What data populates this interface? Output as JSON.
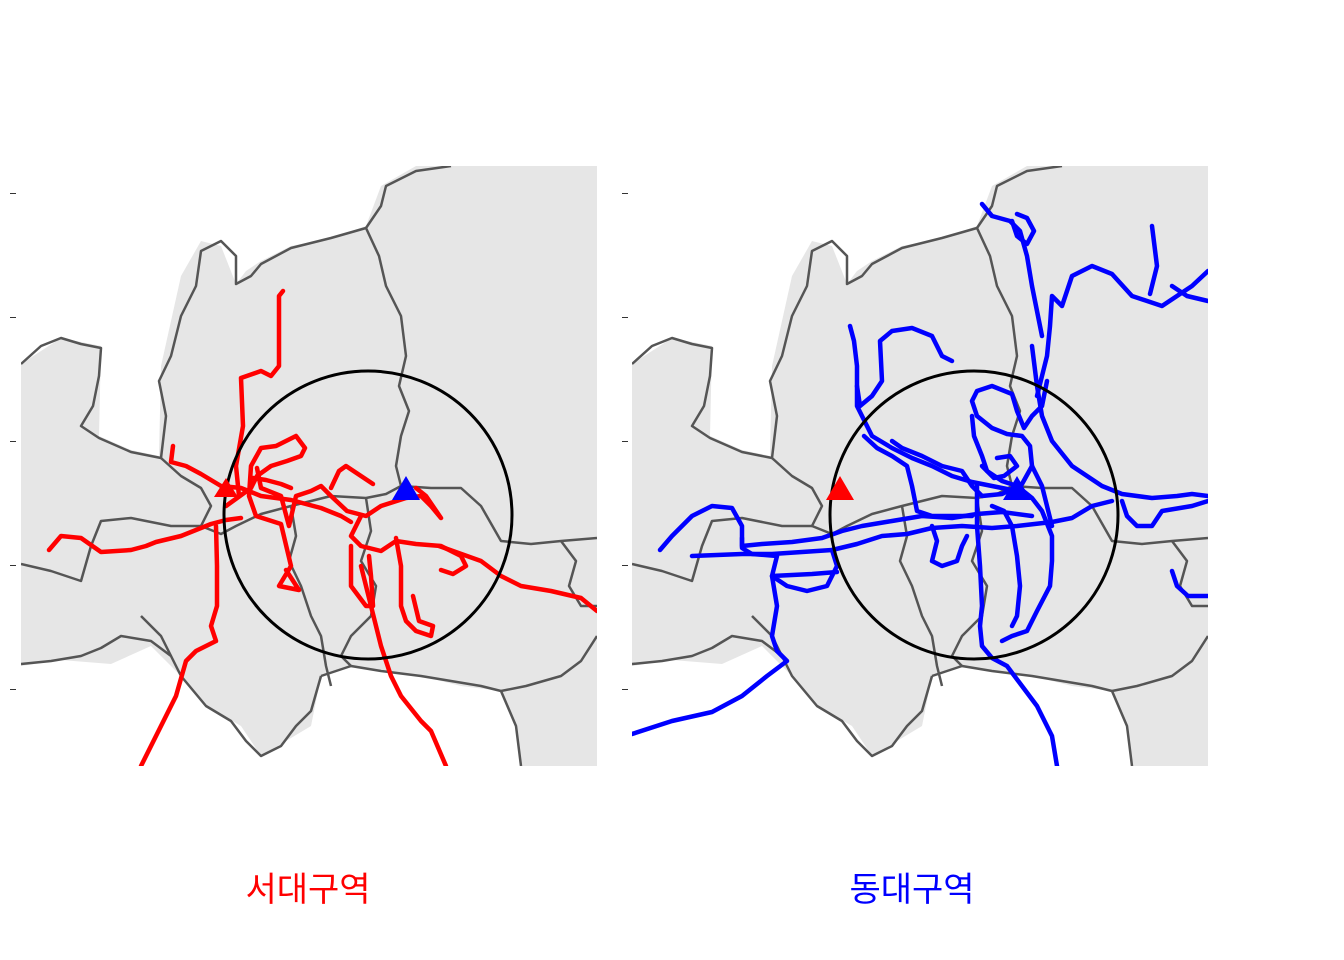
{
  "panels": [
    {
      "id": "left",
      "caption": "서대구역",
      "caption_color": "#ff0000",
      "route_color": "#ff0000"
    },
    {
      "id": "right",
      "caption": "동대구역",
      "caption_color": "#0000ff",
      "route_color": "#0000ff"
    }
  ],
  "colors": {
    "land": "#e6e6e6",
    "boundary": "#555555",
    "catchment_circle": "#000000",
    "west_station_marker": "#ff0000",
    "east_station_marker": "#0000ff"
  },
  "legend_markers": {
    "west_station": "red-triangle",
    "east_station": "blue-triangle"
  }
}
